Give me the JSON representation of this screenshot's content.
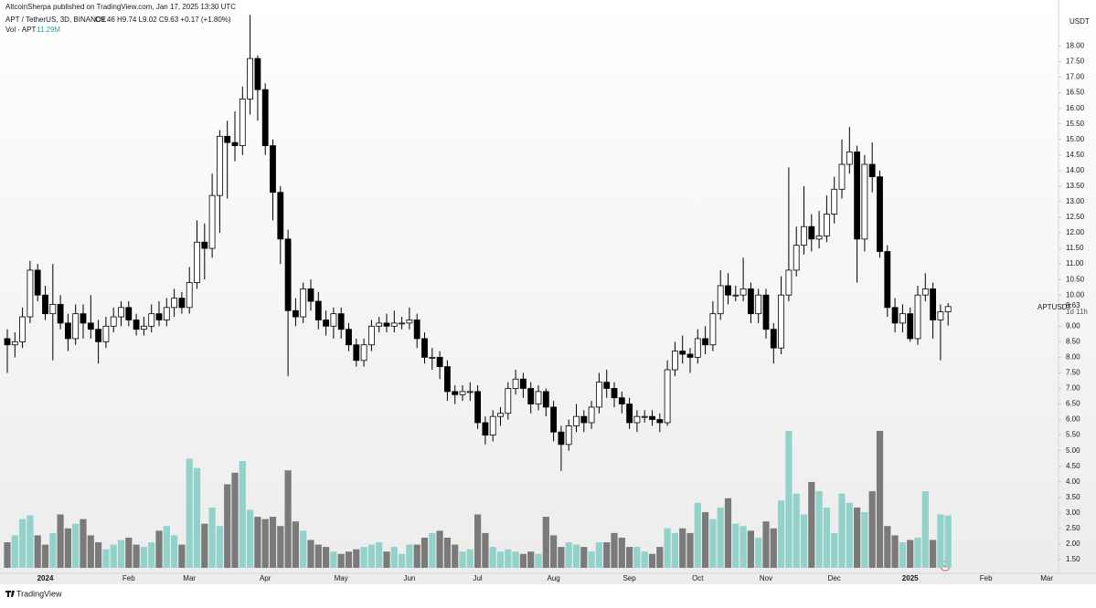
{
  "header": {
    "publisher": "AltcoinSherpa published on TradingView.com, Jan 17, 2025 13:30 UTC"
  },
  "footer": {
    "brand": "TradingView"
  },
  "chart_data": {
    "type": "candlestick",
    "symbol": "APT / TetherUS, 3D, BINANCE",
    "ohlc_legend": "O9.46 H9.74 L9.02 C9.63 +0.17 (+1.80%)",
    "volume_legend": "Vol · APT",
    "volume_legend_value": "11.29M",
    "currency": "USDT",
    "price_label_symbol": "APTUSDT",
    "countdown": "1d 11h",
    "up_color": "#ffffff",
    "down_color": "#000000",
    "wick_color": "#000000",
    "volume_up_color": "#92d2ca",
    "volume_down_color": "#7a7a7a",
    "grid": false,
    "ylim": [
      1.06,
      18.6
    ],
    "yticks": [
      {
        "value": 1.5,
        "label": "1.50"
      },
      {
        "value": 2,
        "label": "2.00"
      },
      {
        "value": 2.5,
        "label": "2.50"
      },
      {
        "value": 3,
        "label": "3.00"
      },
      {
        "value": 3.5,
        "label": "3.50"
      },
      {
        "value": 4,
        "label": "4.00"
      },
      {
        "value": 4.5,
        "label": "4.50"
      },
      {
        "value": 5,
        "label": "5.00"
      },
      {
        "value": 5.5,
        "label": "5.50"
      },
      {
        "value": 6,
        "label": "6.00"
      },
      {
        "value": 6.5,
        "label": "6.50"
      },
      {
        "value": 7,
        "label": "7.00"
      },
      {
        "value": 7.5,
        "label": "7.50"
      },
      {
        "value": 8,
        "label": "8.00"
      },
      {
        "value": 8.5,
        "label": "8.50"
      },
      {
        "value": 9,
        "label": "9.00"
      },
      {
        "value": 10,
        "label": "10.00"
      },
      {
        "value": 10.5,
        "label": "10.50"
      },
      {
        "value": 11,
        "label": "11.00"
      },
      {
        "value": 11.5,
        "label": "11.50"
      },
      {
        "value": 12,
        "label": "12.00"
      },
      {
        "value": 12.5,
        "label": "12.50"
      },
      {
        "value": 13,
        "label": "13.00"
      },
      {
        "value": 13.5,
        "label": "13.50"
      },
      {
        "value": 14,
        "label": "14.00"
      },
      {
        "value": 14.5,
        "label": "14.50"
      },
      {
        "value": 15,
        "label": "15.00"
      },
      {
        "value": 15.5,
        "label": "15.50"
      },
      {
        "value": 16,
        "label": "16.00"
      },
      {
        "value": 16.5,
        "label": "16.50"
      },
      {
        "value": 17,
        "label": "17.00"
      },
      {
        "value": 17.5,
        "label": "17.50"
      },
      {
        "value": 18,
        "label": "18.00"
      }
    ],
    "categories": [
      null,
      null,
      null,
      null,
      null,
      "2024",
      null,
      null,
      null,
      null,
      null,
      null,
      null,
      null,
      null,
      null,
      "Feb",
      null,
      null,
      null,
      null,
      null,
      null,
      null,
      "Mar",
      null,
      null,
      null,
      null,
      null,
      null,
      null,
      null,
      null,
      "Apr",
      null,
      null,
      null,
      null,
      null,
      null,
      null,
      null,
      null,
      "May",
      null,
      null,
      null,
      null,
      null,
      null,
      null,
      null,
      "Jun",
      null,
      null,
      null,
      null,
      null,
      null,
      null,
      null,
      "Jul",
      null,
      null,
      null,
      null,
      null,
      null,
      null,
      null,
      null,
      "Aug",
      null,
      null,
      null,
      null,
      null,
      null,
      null,
      null,
      null,
      "Sep",
      null,
      null,
      null,
      null,
      null,
      null,
      null,
      null,
      "Oct",
      null,
      null,
      null,
      null,
      null,
      null,
      null,
      null,
      "Nov",
      null,
      null,
      null,
      null,
      null,
      null,
      null,
      null,
      "Dec",
      null,
      null,
      null,
      null,
      null,
      null,
      null,
      null,
      null,
      "2025",
      null,
      null,
      null,
      null,
      null,
      null,
      null,
      null,
      null,
      "Feb",
      null,
      null,
      null,
      null,
      null,
      null,
      null,
      "Mar",
      null
    ],
    "open": [
      8.6,
      8.4,
      8.5,
      9.3,
      10.8,
      10.0,
      9.4,
      9.7,
      9.1,
      8.6,
      9.4,
      9.1,
      8.9,
      8.5,
      9.0,
      9.3,
      9.6,
      9.2,
      8.9,
      9.0,
      9.4,
      9.2,
      9.6,
      9.9,
      9.6,
      10.4,
      11.7,
      11.5,
      13.2,
      15.1,
      14.9,
      14.8,
      16.3,
      17.6,
      16.6,
      14.8,
      13.3,
      11.8,
      9.5,
      9.3,
      10.2,
      9.8,
      9.2,
      9.0,
      9.4,
      8.9,
      8.4,
      7.9,
      8.4,
      9.0,
      9.1,
      9.0,
      9.1,
      9.1,
      9.2,
      8.6,
      8.0,
      8.0,
      7.7,
      6.9,
      6.8,
      6.9,
      6.9,
      5.9,
      5.5,
      6.1,
      6.2,
      7.0,
      7.3,
      7.0,
      6.5,
      6.9,
      6.4,
      5.6,
      5.2,
      5.8,
      6.1,
      5.9,
      6.4,
      7.2,
      7.0,
      6.7,
      6.5,
      5.9,
      6.1,
      6.1,
      6.0,
      5.9,
      7.6,
      8.2,
      8.1,
      8.0,
      8.6,
      8.4,
      9.4,
      10.3,
      10.0,
      10.0,
      10.2,
      9.4,
      10.0,
      8.9,
      8.3,
      10.0,
      10.8,
      11.6,
      12.2,
      11.8,
      11.9,
      12.6,
      13.4,
      14.2,
      14.6,
      11.8,
      14.2,
      13.8,
      11.4,
      9.6,
      9.1,
      9.4,
      8.6,
      10.0,
      10.2,
      9.2,
      9.46,
      null,
      null,
      null,
      null,
      null,
      null,
      null,
      null,
      null,
      null,
      null,
      null,
      null,
      null
    ],
    "high": [
      8.9,
      8.8,
      9.6,
      11.1,
      11.0,
      10.3,
      11.0,
      10.0,
      9.4,
      9.7,
      9.7,
      10.0,
      9.2,
      9.3,
      9.6,
      9.8,
      9.8,
      9.4,
      9.3,
      9.7,
      9.8,
      9.9,
      10.2,
      10.1,
      10.9,
      12.4,
      12.3,
      13.9,
      15.3,
      15.6,
      15.9,
      16.7,
      19.0,
      17.7,
      16.8,
      15.0,
      13.5,
      12.1,
      9.9,
      10.4,
      10.5,
      10.1,
      9.5,
      9.6,
      9.6,
      9.1,
      8.6,
      8.6,
      9.2,
      9.3,
      9.4,
      9.5,
      9.3,
      9.6,
      9.4,
      8.8,
      8.3,
      8.2,
      7.9,
      7.1,
      7.1,
      7.2,
      7.1,
      6.1,
      6.3,
      6.4,
      7.2,
      7.6,
      7.5,
      7.2,
      7.1,
      7.0,
      6.6,
      5.8,
      6.0,
      6.5,
      6.3,
      6.6,
      7.5,
      7.6,
      7.2,
      6.9,
      6.7,
      6.3,
      6.3,
      6.3,
      6.2,
      7.9,
      8.5,
      8.7,
      8.3,
      8.9,
      9.0,
      9.8,
      10.8,
      10.7,
      10.3,
      11.2,
      10.4,
      10.2,
      10.2,
      9.1,
      10.6,
      14.1,
      12.2,
      13.5,
      12.6,
      12.7,
      13.2,
      13.8,
      15.0,
      15.4,
      14.8,
      14.5,
      14.9,
      14.0,
      11.6,
      9.9,
      9.7,
      9.6,
      10.3,
      10.7,
      10.4,
      9.7,
      9.74,
      null,
      null,
      null,
      null,
      null,
      null,
      null,
      null,
      null,
      null,
      null,
      null,
      null,
      null
    ],
    "low": [
      7.5,
      8.0,
      8.3,
      9.1,
      9.8,
      9.2,
      7.9,
      8.9,
      8.2,
      8.4,
      8.6,
      8.6,
      7.8,
      8.3,
      8.8,
      9.0,
      9.0,
      8.7,
      8.7,
      8.8,
      9.0,
      9.0,
      9.3,
      9.4,
      9.4,
      10.2,
      10.5,
      11.2,
      12.0,
      13.1,
      14.3,
      14.5,
      15.8,
      15.6,
      14.5,
      12.4,
      11.0,
      7.4,
      9.0,
      9.1,
      9.5,
      8.9,
      8.7,
      8.6,
      8.6,
      8.2,
      7.7,
      7.7,
      8.2,
      8.8,
      8.8,
      8.8,
      8.9,
      8.9,
      8.3,
      7.8,
      7.6,
      7.3,
      6.6,
      6.5,
      6.6,
      6.6,
      5.7,
      5.2,
      5.3,
      5.8,
      6.0,
      6.8,
      6.7,
      6.2,
      6.3,
      6.1,
      5.3,
      4.35,
      5.0,
      5.6,
      5.6,
      5.7,
      6.2,
      6.7,
      6.4,
      6.2,
      5.7,
      5.6,
      5.9,
      5.8,
      5.6,
      5.8,
      7.4,
      7.8,
      7.5,
      7.8,
      8.1,
      8.2,
      9.2,
      9.7,
      9.8,
      9.8,
      9.1,
      9.1,
      8.6,
      7.8,
      8.1,
      9.8,
      10.6,
      11.3,
      11.4,
      11.5,
      11.7,
      12.3,
      13.1,
      13.9,
      10.4,
      11.4,
      13.3,
      11.2,
      9.3,
      8.8,
      8.8,
      8.5,
      8.4,
      9.8,
      8.6,
      7.9,
      9.02,
      null,
      null,
      null,
      null,
      null,
      null,
      null,
      null,
      null,
      null,
      null,
      null,
      null,
      null
    ],
    "close": [
      8.4,
      8.5,
      9.3,
      10.8,
      10.0,
      9.4,
      9.7,
      9.1,
      8.6,
      9.4,
      9.1,
      8.9,
      8.5,
      9.0,
      9.3,
      9.6,
      9.2,
      8.9,
      9.0,
      9.4,
      9.2,
      9.6,
      9.9,
      9.6,
      10.4,
      11.7,
      11.5,
      13.2,
      15.1,
      14.9,
      14.8,
      16.3,
      17.6,
      16.6,
      14.8,
      13.3,
      11.8,
      9.5,
      9.3,
      10.2,
      9.8,
      9.2,
      9.0,
      9.4,
      8.9,
      8.4,
      7.9,
      8.4,
      9.0,
      9.1,
      9.0,
      9.1,
      9.1,
      9.2,
      8.6,
      8.0,
      8.0,
      7.7,
      6.9,
      6.8,
      6.9,
      6.9,
      5.9,
      5.5,
      6.1,
      6.2,
      7.0,
      7.3,
      7.0,
      6.5,
      6.9,
      6.4,
      5.6,
      5.2,
      5.8,
      6.1,
      5.9,
      6.4,
      7.2,
      7.0,
      6.7,
      6.5,
      5.9,
      6.1,
      6.1,
      6.0,
      5.9,
      7.6,
      8.2,
      8.1,
      8.0,
      8.6,
      8.4,
      9.4,
      10.3,
      10.0,
      10.0,
      10.2,
      9.4,
      10.0,
      8.9,
      8.3,
      10.0,
      10.8,
      11.6,
      12.2,
      11.8,
      11.9,
      12.6,
      13.4,
      14.2,
      14.6,
      11.8,
      14.2,
      13.8,
      11.4,
      9.6,
      9.1,
      9.4,
      8.6,
      10.0,
      10.2,
      9.2,
      9.46,
      9.63,
      null,
      null,
      null,
      null,
      null,
      null,
      null,
      null,
      null,
      null,
      null,
      null,
      null,
      null
    ],
    "volume": [
      5.5,
      7.0,
      10.5,
      11.3,
      7.0,
      5.0,
      7.5,
      11.5,
      8.5,
      9.5,
      10.5,
      7.0,
      5.5,
      4.0,
      5.0,
      6.0,
      6.5,
      5.0,
      4.5,
      5.5,
      8.0,
      9.0,
      7.0,
      5.0,
      23.5,
      21.5,
      9.5,
      13.0,
      9.0,
      18.0,
      20.5,
      23.0,
      12.5,
      11.0,
      10.5,
      11.0,
      9.0,
      21.0,
      10.0,
      8.0,
      6.0,
      5.0,
      4.5,
      3.5,
      3.0,
      3.5,
      4.0,
      4.5,
      5.0,
      5.5,
      3.5,
      4.5,
      3.0,
      5.0,
      5.0,
      6.5,
      7.5,
      8.0,
      6.5,
      5.0,
      3.5,
      4.0,
      11.5,
      7.5,
      4.5,
      3.5,
      4.0,
      3.5,
      3.0,
      3.5,
      3.0,
      11.0,
      7.0,
      4.5,
      5.5,
      5.0,
      4.5,
      3.5,
      5.5,
      5.5,
      7.5,
      6.5,
      4.5,
      4.5,
      3.5,
      3.0,
      4.5,
      8.5,
      7.5,
      8.5,
      7.5,
      14.0,
      12.0,
      10.5,
      13.0,
      15.0,
      9.5,
      9.0,
      8.0,
      6.5,
      10.0,
      8.5,
      14.5,
      29.5,
      16.0,
      11.5,
      18.5,
      16.5,
      13.0,
      7.5,
      16.0,
      14.0,
      13.0,
      12.0,
      16.5,
      29.5,
      9.0,
      7.0,
      5.5,
      6.0,
      6.5,
      16.5,
      6.0,
      11.5,
      11.29,
      null,
      null,
      null,
      null,
      null,
      null,
      null,
      null,
      null,
      null,
      null,
      null,
      null,
      null
    ]
  }
}
